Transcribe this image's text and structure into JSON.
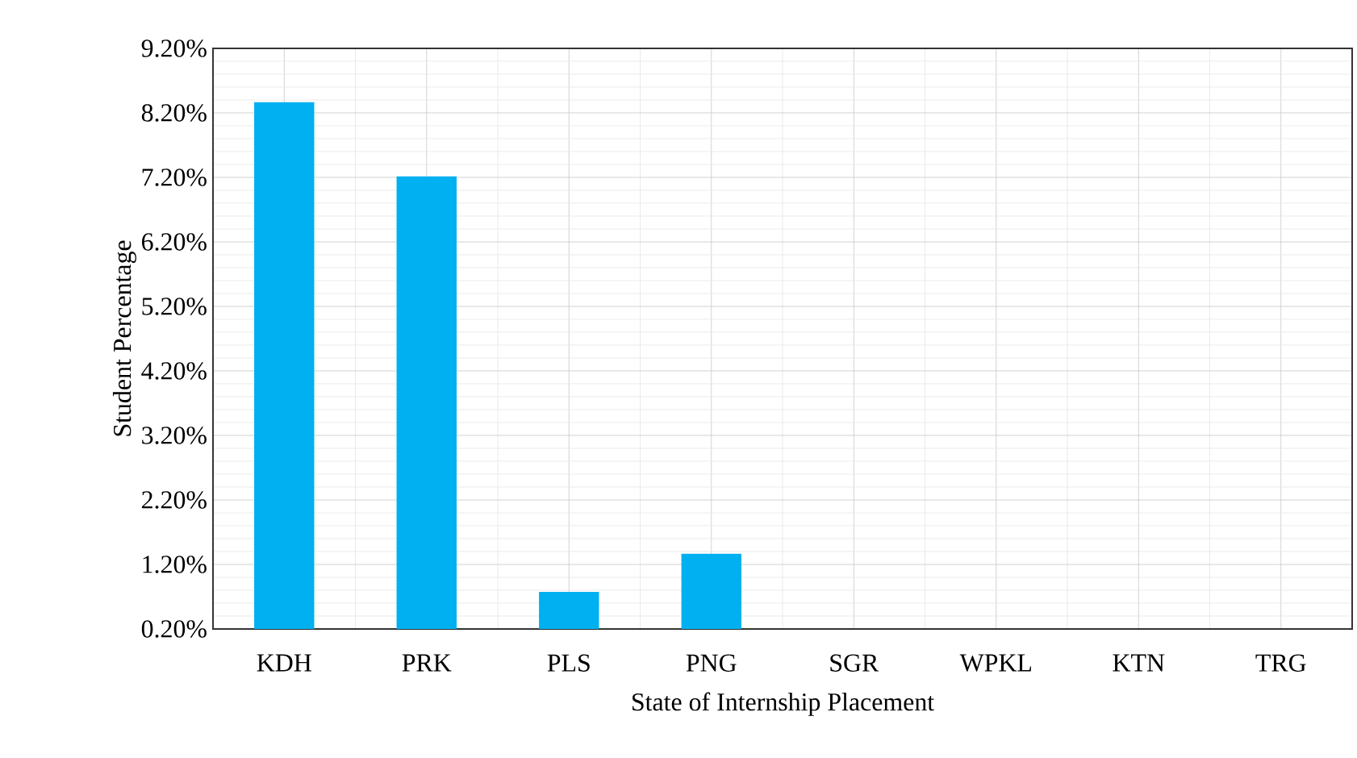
{
  "chart_data": {
    "type": "bar",
    "xlabel": "State of Internship Placement",
    "ylabel": "Student Percentage",
    "categories": [
      "KDH",
      "PRK",
      "PLS",
      "PNG",
      "SGR",
      "WPKL",
      "KTN",
      "TRG"
    ],
    "values": [
      8.35,
      7.2,
      0.76,
      1.35,
      null,
      null,
      null,
      null
    ],
    "color": "#00b0f0",
    "ylim": [
      0.2,
      9.2
    ],
    "yticks": [
      {
        "value": 0.2,
        "label": "0.20%"
      },
      {
        "value": 1.2,
        "label": "1.20%"
      },
      {
        "value": 2.2,
        "label": "2.20%"
      },
      {
        "value": 3.2,
        "label": "3.20%"
      },
      {
        "value": 4.2,
        "label": "4.20%"
      },
      {
        "value": 5.2,
        "label": "5.20%"
      },
      {
        "value": 6.2,
        "label": "6.20%"
      },
      {
        "value": 7.2,
        "label": "7.20%"
      },
      {
        "value": 8.2,
        "label": "8.20%"
      },
      {
        "value": 9.2,
        "label": "9.20%"
      }
    ],
    "grid": true
  }
}
